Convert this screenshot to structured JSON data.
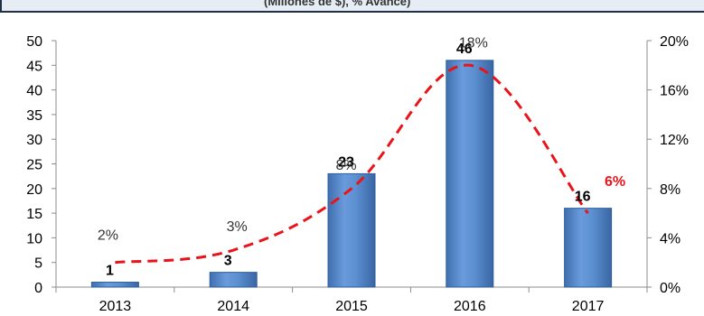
{
  "chart_data": {
    "type": "bar",
    "title": "(Millones de $), % Avance)",
    "categories": [
      "2013",
      "2014",
      "2015",
      "2016",
      "2017"
    ],
    "series": [
      {
        "kind": "bar",
        "axis": "left",
        "values": [
          1,
          3,
          23,
          46,
          16
        ],
        "labels": [
          "1",
          "3",
          "23",
          "46",
          "16"
        ]
      },
      {
        "kind": "line",
        "axis": "right",
        "style": "dashed",
        "values": [
          0.02,
          0.03,
          0.08,
          0.18,
          0.06
        ],
        "labels": [
          "2%",
          "3%",
          "8%",
          "18%",
          "6%"
        ]
      }
    ],
    "ylim": [
      0,
      50
    ],
    "yticks": [
      "0",
      "5",
      "10",
      "15",
      "20",
      "25",
      "30",
      "35",
      "40",
      "45",
      "50"
    ],
    "y2lim": [
      0,
      0.2
    ],
    "y2ticks": [
      "0%",
      "4%",
      "8%",
      "12%",
      "16%",
      "20%"
    ],
    "grid": false,
    "legend": "none",
    "colors": {
      "bar": "#5b8fd0",
      "bar_edge": "#2e5f9e",
      "line": "#e8141a",
      "highlight_label": "#e8141a",
      "axis": "#8c8c8c"
    }
  }
}
